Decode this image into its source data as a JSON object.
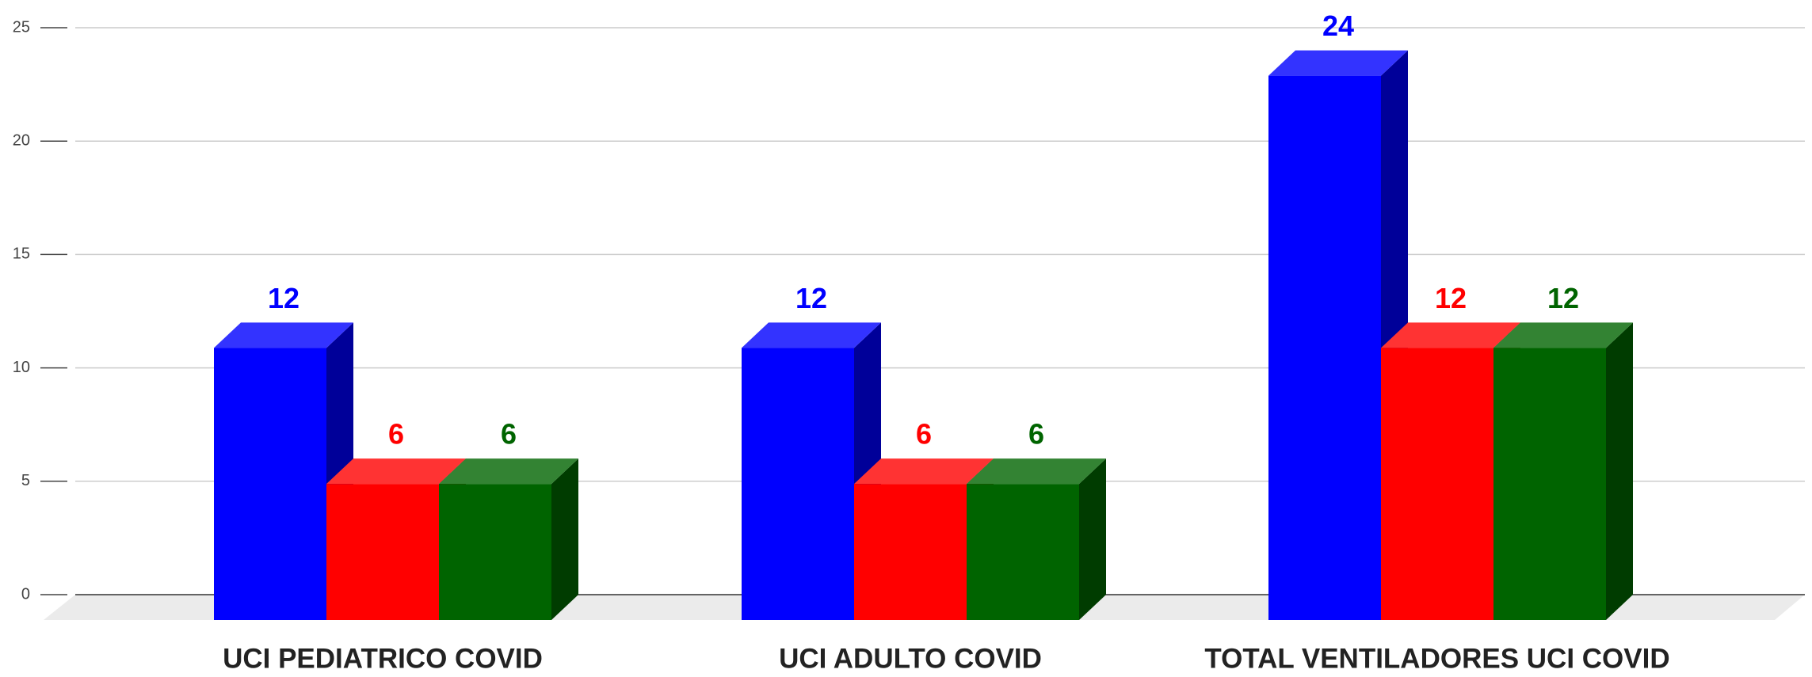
{
  "chart_data": {
    "type": "bar3d",
    "categories": [
      "UCI PEDIATRICO COVID",
      "UCI ADULTO COVID",
      "TOTAL VENTILADORES UCI COVID"
    ],
    "series": [
      {
        "color": "#0000ff",
        "values": [
          12,
          12,
          24
        ]
      },
      {
        "color": "#ff0000",
        "values": [
          6,
          6,
          12
        ]
      },
      {
        "color": "#006400",
        "values": [
          6,
          6,
          12
        ]
      }
    ],
    "ylim": [
      0,
      25
    ],
    "yticks": [
      0,
      5,
      10,
      15,
      20,
      25
    ],
    "grid": true
  }
}
